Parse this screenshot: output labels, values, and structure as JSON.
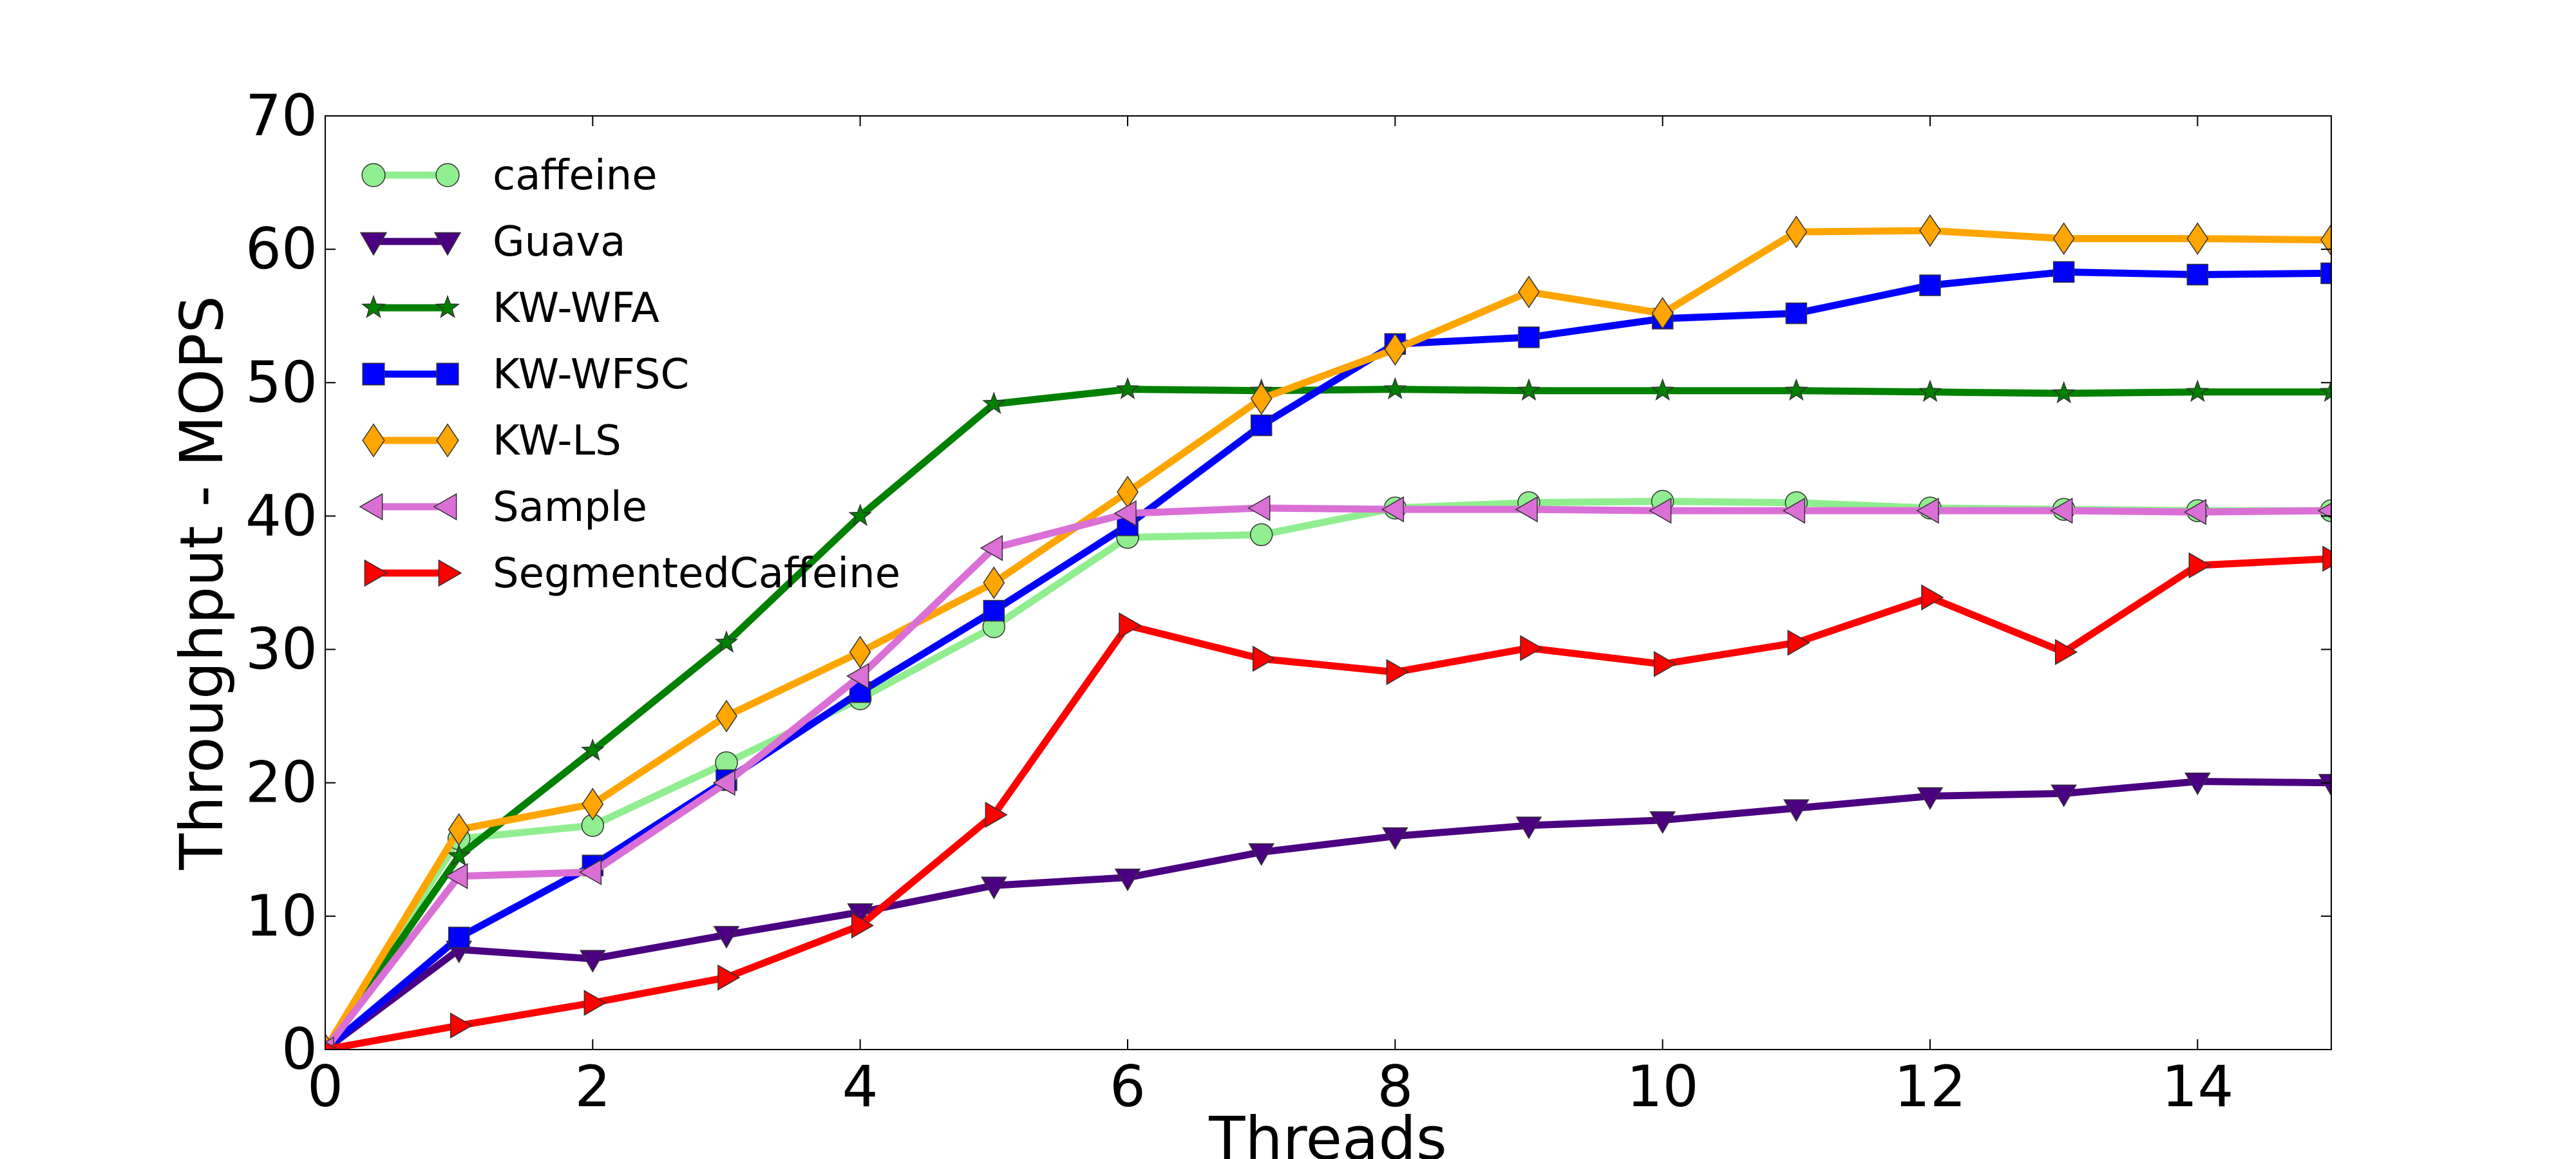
{
  "chart_data": {
    "type": "line",
    "title": "",
    "xlabel": "Threads",
    "ylabel": "Throughput - MOPS",
    "xlim": [
      0,
      15
    ],
    "ylim": [
      0,
      70
    ],
    "x_ticks": [
      0,
      2,
      4,
      6,
      8,
      10,
      12,
      14
    ],
    "x_tick_labels": [
      "0",
      "2",
      "4",
      "6",
      "8",
      "10",
      "12",
      "14"
    ],
    "y_ticks": [
      0,
      10,
      20,
      30,
      40,
      50,
      60,
      70
    ],
    "y_tick_labels": [
      "0",
      "10",
      "20",
      "30",
      "40",
      "50",
      "60",
      "70"
    ],
    "legend_position": "upper-left",
    "grid": false,
    "x": [
      0,
      1,
      2,
      3,
      4,
      5,
      6,
      7,
      8,
      9,
      10,
      11,
      12,
      13,
      14,
      15
    ],
    "series": [
      {
        "name": "caffeine",
        "color": "#90ee90",
        "marker": "circle",
        "values": [
          0,
          15.8,
          16.8,
          21.5,
          26.3,
          31.7,
          38.4,
          38.6,
          40.6,
          41.0,
          41.1,
          41.0,
          40.6,
          40.5,
          40.4,
          40.4
        ]
      },
      {
        "name": "Guava",
        "color": "#4b0082",
        "marker": "triangle-down",
        "values": [
          0,
          7.5,
          6.8,
          8.6,
          10.3,
          12.3,
          12.9,
          14.8,
          16.0,
          16.8,
          17.2,
          18.1,
          19.0,
          19.2,
          20.1,
          20.0
        ]
      },
      {
        "name": "KW-WFA",
        "color": "#008000",
        "marker": "star",
        "values": [
          0,
          14.5,
          22.4,
          30.5,
          40.0,
          48.4,
          49.5,
          49.4,
          49.5,
          49.4,
          49.4,
          49.4,
          49.3,
          49.2,
          49.3,
          49.3
        ]
      },
      {
        "name": "KW-WFSC",
        "color": "#0000ff",
        "marker": "square",
        "values": [
          0,
          8.4,
          13.8,
          20.2,
          26.8,
          32.9,
          39.3,
          46.8,
          52.9,
          53.4,
          54.8,
          55.2,
          57.3,
          58.3,
          58.1,
          58.2
        ]
      },
      {
        "name": "KW-LS",
        "color": "#ffa500",
        "marker": "diamond",
        "values": [
          0,
          16.5,
          18.4,
          25.0,
          29.8,
          35.0,
          41.8,
          48.8,
          52.5,
          56.8,
          55.2,
          61.3,
          61.4,
          60.8,
          60.8,
          60.7
        ]
      },
      {
        "name": "Sample",
        "color": "#da70d6",
        "marker": "triangle-left",
        "values": [
          0,
          13.0,
          13.3,
          20.0,
          28.0,
          37.6,
          40.2,
          40.6,
          40.5,
          40.5,
          40.4,
          40.4,
          40.4,
          40.4,
          40.3,
          40.4
        ]
      },
      {
        "name": "SegmentedCaffeine",
        "color": "#ff0000",
        "marker": "triangle-right",
        "values": [
          0,
          1.8,
          3.5,
          5.4,
          9.3,
          17.6,
          31.8,
          29.3,
          28.3,
          30.1,
          28.9,
          30.5,
          33.9,
          29.8,
          36.3,
          36.8
        ]
      }
    ]
  }
}
